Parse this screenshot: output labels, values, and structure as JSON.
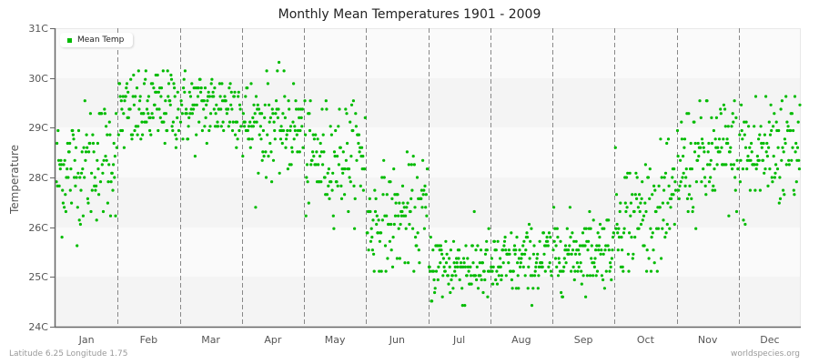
{
  "chart_data": {
    "type": "scatter",
    "title": "Monthly Mean Temperatures 1901 - 2009",
    "xlabel": "",
    "ylabel": "Temperature",
    "y_tick_labels": [
      "31C",
      "30C",
      "29C",
      "28C",
      "26C",
      "25C",
      "24C"
    ],
    "categories": [
      "Jan",
      "Feb",
      "Mar",
      "Apr",
      "May",
      "Jun",
      "Jul",
      "Aug",
      "Sep",
      "Oct",
      "Nov",
      "Dec"
    ],
    "legend": [
      {
        "name": "Mean Temp",
        "color": "#00bb00"
      }
    ],
    "legend_position": "top-left",
    "grid": "alternating horizontal bands, dashed vertical month separators",
    "series": [
      {
        "name": "Mean Temp",
        "points_per_month": 109,
        "monthly_summary": [
          {
            "month": "Jan",
            "min_display": 25.7,
            "max_display": 29.5,
            "typical_low": 26.4,
            "typical_high": 28.7,
            "start": 27.6,
            "end": 28.6
          },
          {
            "month": "Feb",
            "min_display": 27.9,
            "max_display": 30.0,
            "typical_low": 28.2,
            "typical_high": 29.8,
            "start": 28.9,
            "end": 29.4
          },
          {
            "month": "Mar",
            "min_display": 27.9,
            "max_display": 30.4,
            "typical_low": 28.4,
            "typical_high": 29.9,
            "start": 29.0,
            "end": 29.3
          },
          {
            "month": "Apr",
            "min_display": 26.4,
            "max_display": 30.2,
            "typical_low": 27.8,
            "typical_high": 29.6,
            "start": 28.8,
            "end": 28.6
          },
          {
            "month": "May",
            "min_display": 26.3,
            "max_display": 29.3,
            "typical_low": 26.8,
            "typical_high": 28.9,
            "start": 28.0,
            "end": 28.2
          },
          {
            "month": "Jun",
            "min_display": 25.3,
            "max_display": 28.2,
            "typical_low": 25.6,
            "typical_high": 27.6,
            "start": 26.2,
            "end": 26.8
          },
          {
            "month": "Jul",
            "min_display": 24.4,
            "max_display": 26.7,
            "typical_low": 24.8,
            "typical_high": 26.2,
            "start": 25.4,
            "end": 25.3
          },
          {
            "month": "Aug",
            "min_display": 24.4,
            "max_display": 26.6,
            "typical_low": 24.8,
            "typical_high": 26.1,
            "start": 25.3,
            "end": 25.8
          },
          {
            "month": "Sep",
            "min_display": 24.7,
            "max_display": 26.8,
            "typical_low": 25.1,
            "typical_high": 26.5,
            "start": 25.6,
            "end": 26.0
          },
          {
            "month": "Oct",
            "min_display": 25.3,
            "max_display": 28.4,
            "typical_low": 25.7,
            "typical_high": 27.9,
            "start": 26.3,
            "end": 26.8
          },
          {
            "month": "Nov",
            "min_display": 25.7,
            "max_display": 29.3,
            "typical_low": 26.6,
            "typical_high": 28.8,
            "start": 27.8,
            "end": 28.5
          },
          {
            "month": "Dec",
            "min_display": 25.6,
            "max_display": 29.4,
            "typical_low": 26.6,
            "typical_high": 29.2,
            "start": 27.8,
            "end": 29.0
          }
        ]
      }
    ],
    "ylim": [
      24,
      31
    ]
  },
  "footer": {
    "location": "Latitude 6.25 Longitude 1.75",
    "source": "worldspecies.org"
  },
  "colors": {
    "point": "#00bb00",
    "band_light": "#fafafa",
    "band_dark": "#f4f4f4",
    "axis": "#666666",
    "separator": "#888888"
  }
}
